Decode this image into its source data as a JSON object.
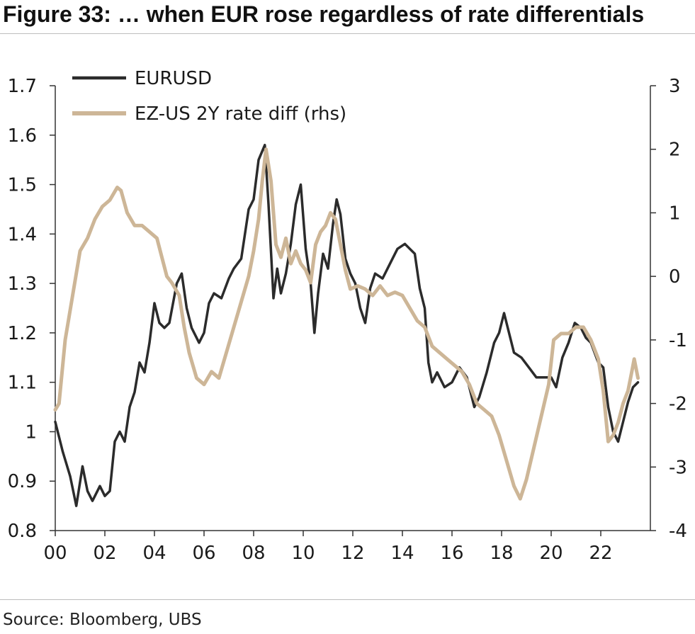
{
  "title": "Figure 33: … when EUR rose regardless of rate differentials",
  "source": "Source: Bloomberg, UBS",
  "chart_data": {
    "type": "line",
    "x_tick_labels": [
      "00",
      "02",
      "04",
      "06",
      "08",
      "10",
      "12",
      "14",
      "16",
      "18",
      "20",
      "22"
    ],
    "x_ticks": [
      2000,
      2002,
      2004,
      2006,
      2008,
      2010,
      2012,
      2014,
      2016,
      2018,
      2020,
      2022
    ],
    "xlim": [
      2000,
      2024
    ],
    "ylim_left": [
      0.8,
      1.7
    ],
    "y_left_ticks": [
      0.8,
      0.9,
      1,
      1.1,
      1.2,
      1.3,
      1.4,
      1.5,
      1.6,
      1.7
    ],
    "y_left_tick_labels": [
      "0.8",
      "0.9",
      "1",
      "1.1",
      "1.2",
      "1.3",
      "1.4",
      "1.5",
      "1.6",
      "1.7"
    ],
    "ylim_right": [
      -4,
      3
    ],
    "y_right_ticks": [
      -4,
      -3,
      -2,
      -1,
      0,
      1,
      2,
      3
    ],
    "y_right_tick_labels": [
      "-4",
      "-3",
      "-2",
      "-1",
      "0",
      "1",
      "2",
      "3"
    ],
    "grid": false,
    "legend_position": "top-left",
    "series": [
      {
        "name": "EURUSD",
        "axis": "left",
        "color": "#2b2b2b",
        "x": [
          2000.0,
          2000.3,
          2000.6,
          2000.85,
          2001.1,
          2001.3,
          2001.5,
          2001.8,
          2002.0,
          2002.2,
          2002.4,
          2002.6,
          2002.8,
          2003.0,
          2003.2,
          2003.4,
          2003.6,
          2003.8,
          2004.0,
          2004.2,
          2004.4,
          2004.6,
          2004.9,
          2005.1,
          2005.3,
          2005.5,
          2005.8,
          2006.0,
          2006.2,
          2006.4,
          2006.7,
          2007.0,
          2007.2,
          2007.5,
          2007.8,
          2008.0,
          2008.2,
          2008.45,
          2008.6,
          2008.8,
          2008.95,
          2009.1,
          2009.3,
          2009.5,
          2009.7,
          2009.9,
          2010.1,
          2010.3,
          2010.45,
          2010.6,
          2010.8,
          2011.0,
          2011.2,
          2011.35,
          2011.5,
          2011.7,
          2011.9,
          2012.1,
          2012.3,
          2012.5,
          2012.7,
          2012.9,
          2013.2,
          2013.5,
          2013.8,
          2014.1,
          2014.3,
          2014.5,
          2014.7,
          2014.9,
          2015.05,
          2015.2,
          2015.4,
          2015.7,
          2016.0,
          2016.3,
          2016.6,
          2016.9,
          2017.1,
          2017.4,
          2017.7,
          2017.9,
          2018.1,
          2018.3,
          2018.5,
          2018.8,
          2019.1,
          2019.4,
          2019.7,
          2020.0,
          2020.2,
          2020.45,
          2020.7,
          2020.95,
          2021.2,
          2021.4,
          2021.6,
          2021.9,
          2022.1,
          2022.3,
          2022.5,
          2022.7,
          2022.9,
          2023.1,
          2023.3,
          2023.5
        ],
        "values": [
          1.02,
          0.96,
          0.91,
          0.85,
          0.93,
          0.88,
          0.86,
          0.89,
          0.87,
          0.88,
          0.98,
          1.0,
          0.98,
          1.05,
          1.08,
          1.14,
          1.12,
          1.18,
          1.26,
          1.22,
          1.21,
          1.22,
          1.3,
          1.32,
          1.25,
          1.21,
          1.18,
          1.2,
          1.26,
          1.28,
          1.27,
          1.31,
          1.33,
          1.35,
          1.45,
          1.47,
          1.55,
          1.58,
          1.46,
          1.27,
          1.33,
          1.28,
          1.32,
          1.38,
          1.46,
          1.5,
          1.37,
          1.3,
          1.2,
          1.28,
          1.36,
          1.33,
          1.42,
          1.47,
          1.44,
          1.35,
          1.32,
          1.3,
          1.25,
          1.22,
          1.29,
          1.32,
          1.31,
          1.34,
          1.37,
          1.38,
          1.37,
          1.36,
          1.29,
          1.25,
          1.14,
          1.1,
          1.12,
          1.09,
          1.1,
          1.13,
          1.11,
          1.05,
          1.07,
          1.12,
          1.18,
          1.2,
          1.24,
          1.2,
          1.16,
          1.15,
          1.13,
          1.11,
          1.11,
          1.11,
          1.09,
          1.15,
          1.18,
          1.22,
          1.21,
          1.19,
          1.18,
          1.14,
          1.13,
          1.05,
          1.0,
          0.98,
          1.02,
          1.06,
          1.09,
          1.1
        ]
      },
      {
        "name": "EZ-US 2Y rate diff (rhs)",
        "axis": "right",
        "color": "#cdb697",
        "x": [
          2000.0,
          2000.15,
          2000.4,
          2000.7,
          2001.0,
          2001.3,
          2001.6,
          2001.9,
          2002.2,
          2002.5,
          2002.65,
          2002.9,
          2003.2,
          2003.5,
          2003.8,
          2004.1,
          2004.3,
          2004.5,
          2004.7,
          2005.0,
          2005.2,
          2005.4,
          2005.7,
          2006.0,
          2006.3,
          2006.6,
          2006.9,
          2007.2,
          2007.5,
          2007.8,
          2008.0,
          2008.2,
          2008.35,
          2008.5,
          2008.7,
          2008.9,
          2009.1,
          2009.3,
          2009.5,
          2009.7,
          2009.9,
          2010.1,
          2010.3,
          2010.5,
          2010.7,
          2010.9,
          2011.1,
          2011.3,
          2011.5,
          2011.7,
          2011.9,
          2012.2,
          2012.5,
          2012.8,
          2013.1,
          2013.4,
          2013.7,
          2014.0,
          2014.3,
          2014.6,
          2014.9,
          2015.2,
          2015.5,
          2015.8,
          2016.1,
          2016.4,
          2016.7,
          2017.0,
          2017.3,
          2017.6,
          2017.9,
          2018.2,
          2018.5,
          2018.75,
          2019.0,
          2019.3,
          2019.6,
          2019.9,
          2020.1,
          2020.4,
          2020.7,
          2021.0,
          2021.3,
          2021.6,
          2021.9,
          2022.1,
          2022.3,
          2022.5,
          2022.7,
          2022.9,
          2023.1,
          2023.25,
          2023.35,
          2023.5
        ],
        "values": [
          -2.1,
          -2.0,
          -1.0,
          -0.3,
          0.4,
          0.6,
          0.9,
          1.1,
          1.2,
          1.4,
          1.35,
          1.0,
          0.8,
          0.8,
          0.7,
          0.6,
          0.3,
          0.0,
          -0.1,
          -0.3,
          -0.8,
          -1.2,
          -1.6,
          -1.7,
          -1.5,
          -1.6,
          -1.2,
          -0.8,
          -0.4,
          0.0,
          0.4,
          0.9,
          1.5,
          2.0,
          1.5,
          0.5,
          0.3,
          0.6,
          0.2,
          0.4,
          0.2,
          0.1,
          -0.1,
          0.5,
          0.7,
          0.8,
          1.0,
          0.9,
          0.5,
          0.1,
          -0.2,
          -0.15,
          -0.2,
          -0.3,
          -0.15,
          -0.3,
          -0.25,
          -0.3,
          -0.5,
          -0.7,
          -0.8,
          -1.1,
          -1.2,
          -1.3,
          -1.4,
          -1.5,
          -1.7,
          -2.0,
          -2.1,
          -2.2,
          -2.5,
          -2.9,
          -3.3,
          -3.5,
          -3.2,
          -2.7,
          -2.2,
          -1.7,
          -1.0,
          -0.9,
          -0.9,
          -0.8,
          -0.8,
          -1.0,
          -1.3,
          -1.8,
          -2.6,
          -2.5,
          -2.3,
          -2.0,
          -1.8,
          -1.5,
          -1.3,
          -1.6
        ]
      }
    ]
  }
}
